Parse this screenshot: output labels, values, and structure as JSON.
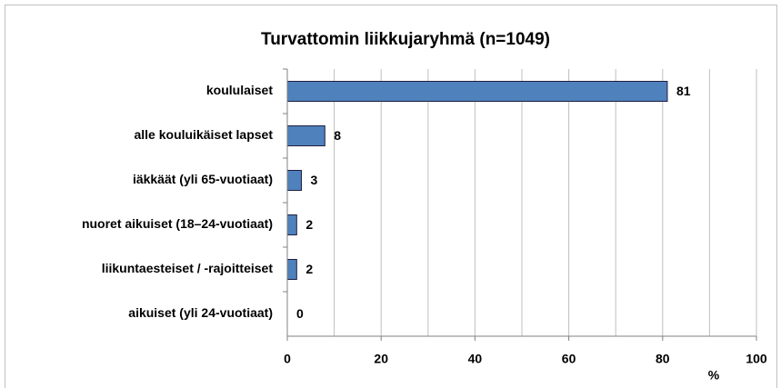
{
  "chart_data": {
    "type": "hbar",
    "title": "Turvattomin liikkujaryhmä (n=1049)",
    "categories": [
      "koululaiset",
      "alle kouluikäiset lapset",
      "iäkkäät (yli 65-vuotiaat)",
      "nuoret aikuiset (18–24-vuotiaat)",
      "liikuntaesteiset / -rajoitteiset",
      "aikuiset (yli 24-vuotiaat)"
    ],
    "values": [
      81,
      8,
      3,
      2,
      2,
      0
    ],
    "color": "#4f81bd",
    "edgecolor": "#1f1f3f",
    "xlabel": "%",
    "xlim": [
      0,
      100
    ],
    "xticks": [
      0,
      20,
      40,
      60,
      80,
      100
    ],
    "grid": true,
    "xgrid": [
      10,
      20,
      30,
      40,
      50,
      60,
      70,
      80,
      90,
      100
    ]
  }
}
